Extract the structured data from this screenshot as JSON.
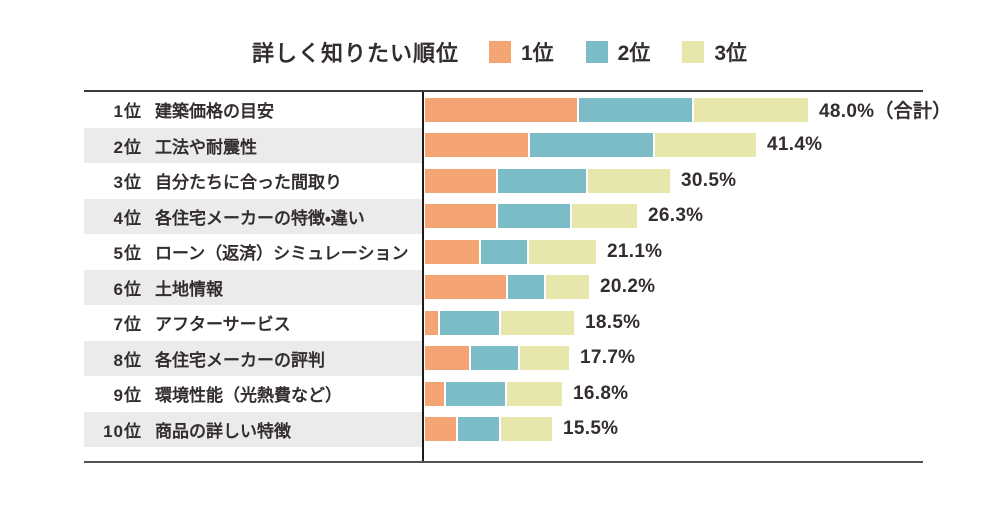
{
  "header": {
    "title": "詳しく知りたい順位",
    "legend": [
      {
        "label": "1位",
        "color": "#f4a473"
      },
      {
        "label": "2位",
        "color": "#7cbcc6"
      },
      {
        "label": "3位",
        "color": "#e7e7ac"
      }
    ]
  },
  "colors": {
    "rank_first": "#f4a473",
    "rank_second": "#7cbcc6",
    "rank_third": "#e7e7ac",
    "stripe_background": "#ebebeb",
    "text": "#332e2d",
    "axis_line": "#1e1a19"
  },
  "chart_data": {
    "type": "bar",
    "orientation": "horizontal",
    "stacked": true,
    "value_unit": "%",
    "legend_position": "top",
    "grid": false,
    "series_names": [
      "1位",
      "2位",
      "3位"
    ],
    "value_axis_range": [
      0,
      50
    ],
    "title": "詳しく知りたい順位",
    "rows": [
      {
        "rank": "1位",
        "label": "建築価格の目安",
        "total": 48.0,
        "total_label": "48.0%（合計）",
        "segments": [
          19.3,
          14.3,
          14.4
        ]
      },
      {
        "rank": "2位",
        "label": "工法や耐震性",
        "total": 41.4,
        "total_label": "41.4%",
        "segments": [
          13.0,
          15.6,
          12.8
        ]
      },
      {
        "rank": "3位",
        "label": "自分たちに合った間取り",
        "total": 30.5,
        "total_label": "30.5%",
        "segments": [
          9.0,
          11.1,
          10.4
        ]
      },
      {
        "rank": "4位",
        "label": "各住宅メーカーの特徴・違い",
        "total": 26.3,
        "total_label": "26.3%",
        "segments": [
          9.0,
          9.1,
          8.2
        ]
      },
      {
        "rank": "5位",
        "label": "ローン（返済）シミュレーション",
        "total": 21.1,
        "total_label": "21.1%",
        "segments": [
          6.8,
          5.8,
          8.5
        ]
      },
      {
        "rank": "6位",
        "label": "土地情報",
        "total": 20.2,
        "total_label": "20.2%",
        "segments": [
          10.2,
          4.5,
          5.5
        ]
      },
      {
        "rank": "7位",
        "label": "アフターサービス",
        "total": 18.5,
        "total_label": "18.5%",
        "segments": [
          1.7,
          7.5,
          9.3
        ]
      },
      {
        "rank": "8位",
        "label": "各住宅メーカーの評判",
        "total": 17.7,
        "total_label": "17.7%",
        "segments": [
          5.6,
          5.9,
          6.2
        ]
      },
      {
        "rank": "9位",
        "label": "環境性能（光熱費など）",
        "total": 16.8,
        "total_label": "16.8%",
        "segments": [
          2.4,
          7.5,
          6.9
        ]
      },
      {
        "rank": "10位",
        "label": "商品の詳しい特徴",
        "total": 15.5,
        "total_label": "15.5%",
        "segments": [
          3.9,
          5.2,
          6.4
        ]
      }
    ]
  }
}
